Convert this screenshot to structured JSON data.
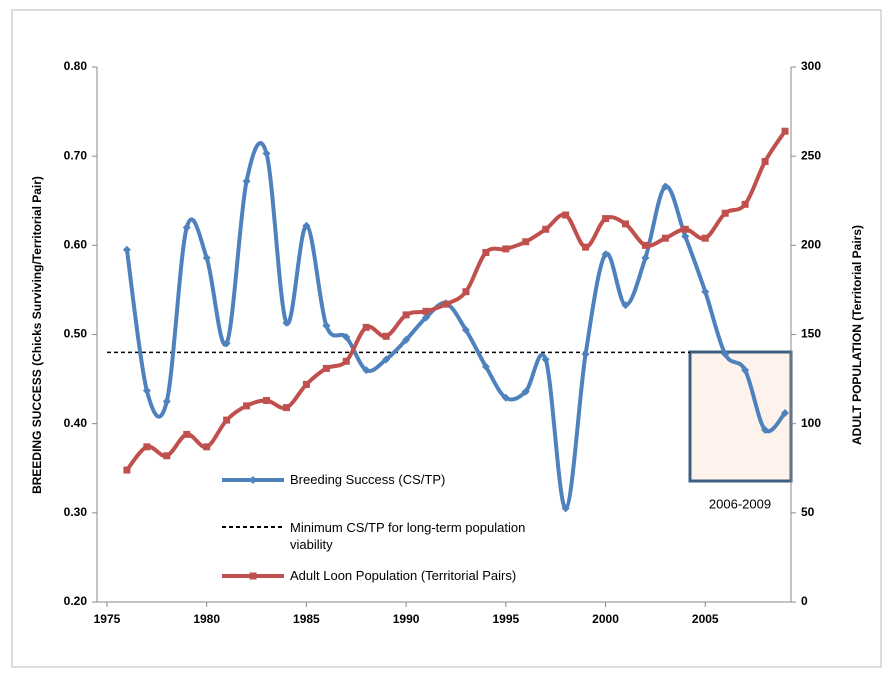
{
  "chart_data": {
    "type": "line",
    "years": [
      1976,
      1977,
      1978,
      1979,
      1980,
      1981,
      1982,
      1983,
      1984,
      1985,
      1986,
      1987,
      1988,
      1989,
      1990,
      1991,
      1992,
      1993,
      1994,
      1995,
      1996,
      1997,
      1998,
      1999,
      2000,
      2001,
      2002,
      2003,
      2004,
      2005,
      2006,
      2007,
      2008,
      2009
    ],
    "series": [
      {
        "name": "Breeding Success (CS/TP)",
        "color": "#4f81bd",
        "axis": "y",
        "marker": "diamond",
        "values": [
          0.595,
          0.437,
          0.425,
          0.62,
          0.586,
          0.49,
          0.672,
          0.703,
          0.513,
          0.622,
          0.51,
          0.497,
          0.46,
          0.472,
          0.494,
          0.519,
          0.535,
          0.505,
          0.464,
          0.429,
          0.436,
          0.472,
          0.305,
          0.478,
          0.59,
          0.533,
          0.586,
          0.666,
          0.61,
          0.548,
          0.478,
          0.46,
          0.393,
          0.412
        ]
      },
      {
        "name": "Adult Loon Population (Territorial Pairs)",
        "color": "#c0504d",
        "axis": "y2",
        "marker": "square",
        "values": [
          74,
          87,
          82,
          94,
          87,
          102,
          110,
          113,
          109,
          122,
          131,
          135,
          154,
          149,
          161,
          163,
          167,
          174,
          196,
          198,
          202,
          209,
          217,
          199,
          215,
          212,
          200,
          204,
          209,
          204,
          218,
          223,
          247,
          264
        ]
      }
    ],
    "threshold": {
      "value": 0.48,
      "label": "Minimum CS/TP for long-term population viability",
      "color": "#000"
    },
    "annotation": "2006-2009",
    "ylabel": "BREEDING SUCCESS (Chicks Surviving/Territorial Pair)",
    "y2label": "ADULT POPULATION (Territorial Pairs)",
    "xlim": [
      1974.5,
      2009.3
    ],
    "xticks": [
      1975,
      1980,
      1985,
      1990,
      1995,
      2000,
      2005
    ],
    "ylim": [
      0.2,
      0.8
    ],
    "yticks": [
      {
        "value": 0.2,
        "label": "0.20"
      },
      {
        "value": 0.3,
        "label": "0.30"
      },
      {
        "value": 0.4,
        "label": "0.40"
      },
      {
        "value": 0.5,
        "label": "0.50"
      },
      {
        "value": 0.6,
        "label": "0.60"
      },
      {
        "value": 0.7,
        "label": "0.70"
      },
      {
        "value": 0.8,
        "label": "0.80"
      }
    ],
    "y2lim": [
      0,
      300
    ],
    "y2ticks": [
      0,
      50,
      100,
      150,
      200,
      250,
      300
    ],
    "grid": false
  }
}
